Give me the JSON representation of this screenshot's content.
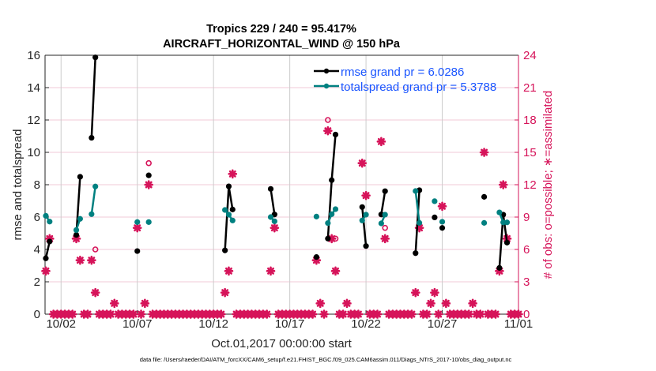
{
  "chart_data": {
    "type": "line",
    "title": [
      "Tropics 229 / 240 = 95.417%",
      "AIRCRAFT_HORIZONTAL_WIND @ 150 hPa"
    ],
    "xlabel": "Oct.01,2017 00:00:00 start",
    "ylabel": "rmse and totalspread",
    "ylabel_right": "# of obs: o=possible; ∗=assimilated",
    "footnote": "data file: /Users/raeder/DAI/ATM_forcXX/CAM6_setup/f.e21.FHIST_BGC.f09_025.CAM6assim.011/Diags_NTrS_2017-10/obs_diag_output.nc",
    "x_units": "days since Oct.01,2017 00:00:00",
    "xlim": [
      -0.05,
      31
    ],
    "ylim": [
      0,
      16
    ],
    "ylim_right": [
      0,
      24
    ],
    "x_ticks": [
      1,
      6,
      11,
      16,
      21,
      26,
      31
    ],
    "x_tick_labels": [
      "10/02",
      "10/07",
      "10/12",
      "10/17",
      "10/22",
      "10/27",
      "11/01"
    ],
    "y_ticks": [
      "0",
      "2",
      "4",
      "6",
      "8",
      "10",
      "12",
      "14",
      "16"
    ],
    "y_ticks_right": [
      "0",
      "3",
      "6",
      "9",
      "12",
      "15",
      "18",
      "21",
      "24"
    ],
    "grid": true,
    "legend_position": "top-right",
    "colors": {
      "rmse": "#000000",
      "spread": "#008080",
      "obs": "#d6145a",
      "legend_text": "#1a55ff",
      "grid_v": "#cccccc",
      "grid_h": "#f2c9d7"
    },
    "series": [
      {
        "name": "rmse",
        "legend": "rmse grand pr = 6.0286",
        "points": [
          [
            0,
            3.45
          ],
          [
            0.25,
            4.49
          ],
          [
            2.0,
            4.9
          ],
          [
            2.25,
            8.49
          ],
          [
            3.0,
            10.9
          ],
          [
            3.25,
            15.87
          ],
          [
            6.0,
            3.9
          ],
          [
            6.75,
            8.58
          ],
          [
            11.75,
            3.94
          ],
          [
            12.0,
            7.9
          ],
          [
            12.25,
            6.47
          ],
          [
            14.75,
            7.74
          ],
          [
            15.0,
            6.16
          ],
          [
            17.75,
            3.53
          ],
          [
            18.5,
            4.67
          ],
          [
            18.75,
            8.28
          ],
          [
            19.0,
            11.1
          ],
          [
            20.75,
            6.62
          ],
          [
            21.0,
            4.21
          ],
          [
            22.0,
            6.16
          ],
          [
            22.25,
            7.6
          ],
          [
            24.25,
            3.77
          ],
          [
            24.5,
            7.66
          ],
          [
            25.5,
            5.98
          ],
          [
            26.0,
            5.33
          ],
          [
            28.75,
            7.25
          ],
          [
            29.75,
            2.86
          ],
          [
            30.0,
            6.15
          ],
          [
            30.25,
            4.42
          ]
        ]
      },
      {
        "name": "totalspread",
        "legend": "totalspread grand pr = 5.3788",
        "points": [
          [
            0,
            6.08
          ],
          [
            0.25,
            5.72
          ],
          [
            2.0,
            5.2
          ],
          [
            2.25,
            5.89
          ],
          [
            3.0,
            6.18
          ],
          [
            3.25,
            7.89
          ],
          [
            6.0,
            5.69
          ],
          [
            6.75,
            5.69
          ],
          [
            11.75,
            6.44
          ],
          [
            12.0,
            6.15
          ],
          [
            12.25,
            5.79
          ],
          [
            14.75,
            6.0
          ],
          [
            15.0,
            5.74
          ],
          [
            17.75,
            6.03
          ],
          [
            18.5,
            5.63
          ],
          [
            18.75,
            6.18
          ],
          [
            19.0,
            6.49
          ],
          [
            20.75,
            5.79
          ],
          [
            21.0,
            6.15
          ],
          [
            22.0,
            5.61
          ],
          [
            22.25,
            6.15
          ],
          [
            24.25,
            7.61
          ],
          [
            24.5,
            5.64
          ],
          [
            25.5,
            6.98
          ],
          [
            26.0,
            5.71
          ],
          [
            28.75,
            5.64
          ],
          [
            29.75,
            6.29
          ],
          [
            30.0,
            5.67
          ],
          [
            30.25,
            5.67
          ]
        ]
      }
    ],
    "obs_bin_days": 0.25,
    "obs_range": [
      0,
      31
    ],
    "obs_assimilated_nonzero": [
      [
        0,
        4
      ],
      [
        0.25,
        7
      ],
      [
        2.0,
        7
      ],
      [
        2.25,
        5
      ],
      [
        3.0,
        5
      ],
      [
        3.25,
        2
      ],
      [
        4.5,
        1
      ],
      [
        6.0,
        8
      ],
      [
        6.5,
        1
      ],
      [
        6.75,
        12
      ],
      [
        11.75,
        2
      ],
      [
        12.0,
        4
      ],
      [
        12.25,
        13
      ],
      [
        14.75,
        4
      ],
      [
        15.0,
        8
      ],
      [
        17.75,
        5
      ],
      [
        18.0,
        1
      ],
      [
        18.5,
        17
      ],
      [
        18.75,
        7
      ],
      [
        19.0,
        4
      ],
      [
        19.75,
        1
      ],
      [
        20.75,
        14
      ],
      [
        21.0,
        11
      ],
      [
        22.0,
        16
      ],
      [
        22.25,
        7
      ],
      [
        24.25,
        2
      ],
      [
        24.5,
        8
      ],
      [
        25.25,
        1
      ],
      [
        25.5,
        2
      ],
      [
        26.0,
        10
      ],
      [
        26.25,
        1
      ],
      [
        28.0,
        1
      ],
      [
        28.75,
        15
      ],
      [
        29.75,
        4
      ],
      [
        30.0,
        12
      ],
      [
        30.25,
        7
      ]
    ],
    "obs_possible_differing": [
      [
        3.25,
        6
      ],
      [
        6.75,
        14
      ],
      [
        18.5,
        18
      ],
      [
        19.0,
        7
      ],
      [
        22.25,
        8
      ]
    ]
  }
}
